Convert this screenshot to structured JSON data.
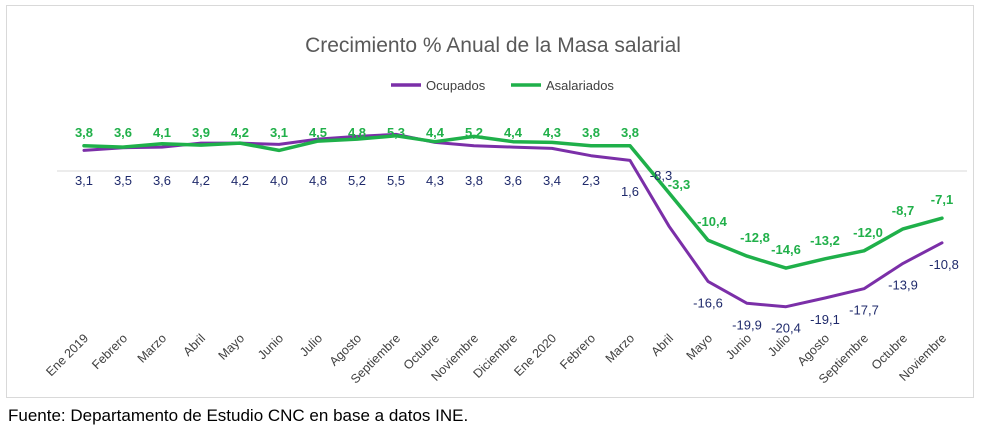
{
  "chart_data": {
    "type": "line",
    "title": "Crecimiento % Anual de la Masa salarial",
    "categories": [
      "Ene 2019",
      "Febrero",
      "Marzo",
      "Abril",
      "Mayo",
      "Junio",
      "Julio",
      "Agosto",
      "Septiembre",
      "Octubre",
      "Noviembre",
      "Diciembre",
      "Ene 2020",
      "Febrero",
      "Marzo",
      "Abril",
      "Mayo",
      "Junio",
      "Julio",
      "Agosto",
      "Septiembre",
      "Octubre",
      "Noviembre"
    ],
    "series": [
      {
        "name": "Ocupados",
        "color": "#7b2fa8",
        "values": [
          3.1,
          3.5,
          3.6,
          4.2,
          4.2,
          4.0,
          4.8,
          5.2,
          5.5,
          4.3,
          3.8,
          3.6,
          3.4,
          2.3,
          1.6,
          -8.3,
          -16.6,
          -19.9,
          -20.4,
          -19.1,
          -17.7,
          -13.9,
          -10.8
        ],
        "labels": [
          "3,1",
          "3,5",
          "3,6",
          "4,2",
          "4,2",
          "4,0",
          "4,8",
          "5,2",
          "5,5",
          "4,3",
          "3,8",
          "3,6",
          "3,4",
          "2,3",
          "1,6",
          "-8,3",
          "-16,6",
          "-19,9",
          "-20,4",
          "-19,1",
          "-17,7",
          "-13,9",
          "-10,8"
        ]
      },
      {
        "name": "Asalariados",
        "color": "#1fb04a",
        "values": [
          3.8,
          3.6,
          4.1,
          3.9,
          4.2,
          3.1,
          4.5,
          4.8,
          5.3,
          4.4,
          5.2,
          4.4,
          4.3,
          3.8,
          3.8,
          -3.3,
          -10.4,
          -12.8,
          -14.6,
          -13.2,
          -12.0,
          -8.7,
          -7.1
        ],
        "labels": [
          "3,8",
          "3,6",
          "4,1",
          "3,9",
          "4,2",
          "3,1",
          "4,5",
          "4,8",
          "5,3",
          "4,4",
          "5,2",
          "4,4",
          "4,3",
          "3,8",
          "3,8",
          "-3,3",
          "-10,4",
          "-12,8",
          "-14,6",
          "-13,2",
          "-12,0",
          "-8,7",
          "-7,1"
        ]
      }
    ],
    "legend": "top-center",
    "grid": false
  },
  "source": "Fuente: Departamento de Estudio CNC en base a datos INE."
}
